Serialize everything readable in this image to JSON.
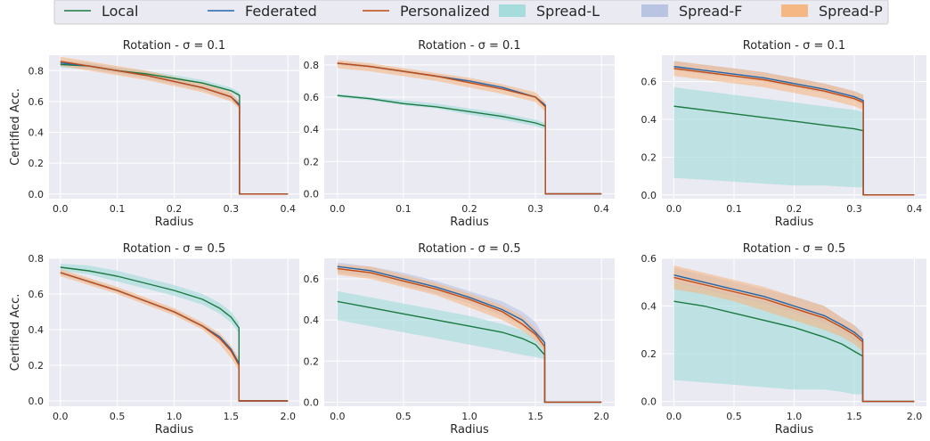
{
  "legend": {
    "entries": [
      {
        "label": "Local",
        "kind": "line",
        "color": "#1a7a3f"
      },
      {
        "label": "Federated",
        "kind": "line",
        "color": "#2166ac"
      },
      {
        "label": "Personalized",
        "kind": "line",
        "color": "#c04a15"
      },
      {
        "label": "Spread-L",
        "kind": "patch",
        "color": "#a6dcdc"
      },
      {
        "label": "Spread-F",
        "kind": "patch",
        "color": "#b9c4e2"
      },
      {
        "label": "Spread-P",
        "kind": "patch",
        "color": "#f5b783"
      }
    ]
  },
  "chart_data": [
    {
      "type": "line",
      "title": "Rotation - σ = 0.1",
      "xlabel": "Radius",
      "ylabel": "Certified Acc.",
      "xlim": [
        -0.02,
        0.42
      ],
      "ylim": [
        -0.03,
        0.9
      ],
      "xticks": [
        0.0,
        0.1,
        0.2,
        0.3,
        0.4
      ],
      "yticks": [
        0.0,
        0.2,
        0.4,
        0.6,
        0.8
      ],
      "x": [
        0.0,
        0.05,
        0.1,
        0.15,
        0.2,
        0.25,
        0.3,
        0.315,
        0.4
      ],
      "series": [
        {
          "name": "Local",
          "values": [
            0.84,
            0.83,
            0.8,
            0.78,
            0.75,
            0.72,
            0.67,
            0.64,
            0.0
          ],
          "spread_lo": [
            0.82,
            0.81,
            0.79,
            0.77,
            0.74,
            0.71,
            0.66,
            0.62,
            0.0
          ],
          "spread_hi": [
            0.86,
            0.85,
            0.82,
            0.8,
            0.77,
            0.74,
            0.69,
            0.66,
            0.0
          ]
        },
        {
          "name": "Federated",
          "values": [
            0.85,
            0.83,
            0.8,
            0.77,
            0.73,
            0.69,
            0.63,
            0.58,
            0.0
          ],
          "spread_lo": [
            0.83,
            0.81,
            0.78,
            0.75,
            0.71,
            0.67,
            0.61,
            0.56,
            0.0
          ],
          "spread_hi": [
            0.87,
            0.85,
            0.82,
            0.79,
            0.75,
            0.71,
            0.65,
            0.6,
            0.0
          ]
        },
        {
          "name": "Personalized",
          "values": [
            0.86,
            0.83,
            0.8,
            0.77,
            0.73,
            0.69,
            0.63,
            0.57,
            0.0
          ],
          "spread_lo": [
            0.83,
            0.8,
            0.77,
            0.74,
            0.7,
            0.66,
            0.6,
            0.55,
            0.0
          ],
          "spread_hi": [
            0.89,
            0.86,
            0.83,
            0.8,
            0.76,
            0.72,
            0.66,
            0.6,
            0.0
          ]
        }
      ]
    },
    {
      "type": "line",
      "title": "Rotation - σ = 0.1",
      "xlabel": "Radius",
      "ylabel": "",
      "xlim": [
        -0.02,
        0.42
      ],
      "ylim": [
        -0.03,
        0.86
      ],
      "xticks": [
        0.0,
        0.1,
        0.2,
        0.3,
        0.4
      ],
      "yticks": [
        0.0,
        0.2,
        0.4,
        0.6,
        0.8
      ],
      "x": [
        0.0,
        0.05,
        0.1,
        0.15,
        0.2,
        0.25,
        0.3,
        0.315,
        0.4
      ],
      "series": [
        {
          "name": "Local",
          "values": [
            0.61,
            0.59,
            0.56,
            0.54,
            0.51,
            0.48,
            0.44,
            0.42,
            0.0
          ],
          "spread_lo": [
            0.6,
            0.58,
            0.55,
            0.53,
            0.49,
            0.46,
            0.42,
            0.4,
            0.0
          ],
          "spread_hi": [
            0.62,
            0.6,
            0.58,
            0.56,
            0.53,
            0.5,
            0.46,
            0.44,
            0.0
          ]
        },
        {
          "name": "Federated",
          "values": [
            0.81,
            0.79,
            0.76,
            0.73,
            0.7,
            0.66,
            0.6,
            0.55,
            0.0
          ],
          "spread_lo": [
            0.8,
            0.78,
            0.75,
            0.72,
            0.69,
            0.65,
            0.59,
            0.54,
            0.0
          ],
          "spread_hi": [
            0.82,
            0.8,
            0.77,
            0.74,
            0.71,
            0.67,
            0.61,
            0.56,
            0.0
          ]
        },
        {
          "name": "Personalized",
          "values": [
            0.81,
            0.79,
            0.76,
            0.73,
            0.69,
            0.65,
            0.6,
            0.54,
            0.0
          ],
          "spread_lo": [
            0.78,
            0.76,
            0.73,
            0.7,
            0.66,
            0.62,
            0.57,
            0.51,
            0.0
          ],
          "spread_hi": [
            0.83,
            0.81,
            0.78,
            0.75,
            0.72,
            0.68,
            0.63,
            0.57,
            0.0
          ]
        }
      ]
    },
    {
      "type": "line",
      "title": "Rotation - σ = 0.1",
      "xlabel": "Radius",
      "ylabel": "",
      "xlim": [
        -0.02,
        0.42
      ],
      "ylim": [
        -0.02,
        0.74
      ],
      "xticks": [
        0.0,
        0.1,
        0.2,
        0.3,
        0.4
      ],
      "yticks": [
        0.0,
        0.2,
        0.4,
        0.6
      ],
      "x": [
        0.0,
        0.05,
        0.1,
        0.15,
        0.2,
        0.25,
        0.3,
        0.315,
        0.4
      ],
      "series": [
        {
          "name": "Local",
          "values": [
            0.47,
            0.45,
            0.43,
            0.41,
            0.39,
            0.37,
            0.35,
            0.34,
            0.0
          ],
          "spread_lo": [
            0.09,
            0.08,
            0.07,
            0.06,
            0.05,
            0.05,
            0.04,
            0.04,
            0.0
          ],
          "spread_hi": [
            0.57,
            0.55,
            0.53,
            0.51,
            0.49,
            0.47,
            0.45,
            0.44,
            0.0
          ]
        },
        {
          "name": "Federated",
          "values": [
            0.68,
            0.66,
            0.64,
            0.62,
            0.59,
            0.56,
            0.52,
            0.5,
            0.0
          ],
          "spread_lo": [
            0.66,
            0.64,
            0.62,
            0.6,
            0.57,
            0.54,
            0.5,
            0.47,
            0.0
          ],
          "spread_hi": [
            0.71,
            0.69,
            0.67,
            0.65,
            0.62,
            0.59,
            0.55,
            0.53,
            0.0
          ]
        },
        {
          "name": "Personalized",
          "values": [
            0.67,
            0.65,
            0.63,
            0.61,
            0.58,
            0.55,
            0.51,
            0.49,
            0.0
          ],
          "spread_lo": [
            0.63,
            0.61,
            0.59,
            0.57,
            0.54,
            0.51,
            0.47,
            0.45,
            0.0
          ],
          "spread_hi": [
            0.71,
            0.69,
            0.67,
            0.65,
            0.62,
            0.59,
            0.55,
            0.53,
            0.0
          ]
        }
      ]
    },
    {
      "type": "line",
      "title": "Rotation - σ = 0.5",
      "xlabel": "Radius",
      "ylabel": "Certified Acc.",
      "xlim": [
        -0.1,
        2.1
      ],
      "ylim": [
        -0.03,
        0.8
      ],
      "xticks": [
        0.0,
        0.5,
        1.0,
        1.5,
        2.0
      ],
      "yticks": [
        0.0,
        0.2,
        0.4,
        0.6,
        0.8
      ],
      "x": [
        0.0,
        0.25,
        0.5,
        0.75,
        1.0,
        1.25,
        1.4,
        1.5,
        1.57,
        2.0
      ],
      "series": [
        {
          "name": "Local",
          "values": [
            0.75,
            0.73,
            0.7,
            0.66,
            0.62,
            0.57,
            0.52,
            0.47,
            0.41,
            0.0
          ],
          "spread_lo": [
            0.73,
            0.71,
            0.67,
            0.63,
            0.59,
            0.54,
            0.49,
            0.44,
            0.38,
            0.0
          ],
          "spread_hi": [
            0.77,
            0.76,
            0.73,
            0.69,
            0.65,
            0.6,
            0.55,
            0.5,
            0.44,
            0.0
          ]
        },
        {
          "name": "Federated",
          "values": [
            0.72,
            0.67,
            0.62,
            0.56,
            0.5,
            0.42,
            0.36,
            0.29,
            0.21,
            0.0
          ],
          "spread_lo": [
            0.71,
            0.66,
            0.61,
            0.55,
            0.49,
            0.41,
            0.35,
            0.28,
            0.2,
            0.0
          ],
          "spread_hi": [
            0.73,
            0.68,
            0.63,
            0.57,
            0.51,
            0.43,
            0.37,
            0.3,
            0.22,
            0.0
          ]
        },
        {
          "name": "Personalized",
          "values": [
            0.72,
            0.67,
            0.62,
            0.56,
            0.5,
            0.42,
            0.35,
            0.28,
            0.2,
            0.0
          ],
          "spread_lo": [
            0.7,
            0.65,
            0.6,
            0.54,
            0.48,
            0.4,
            0.32,
            0.24,
            0.17,
            0.0
          ],
          "spread_hi": [
            0.74,
            0.69,
            0.64,
            0.58,
            0.52,
            0.44,
            0.38,
            0.31,
            0.24,
            0.0
          ]
        }
      ]
    },
    {
      "type": "line",
      "title": "Rotation - σ = 0.5",
      "xlabel": "Radius",
      "ylabel": "",
      "xlim": [
        -0.1,
        2.1
      ],
      "ylim": [
        -0.02,
        0.7
      ],
      "xticks": [
        0.0,
        0.5,
        1.0,
        1.5,
        2.0
      ],
      "yticks": [
        0.0,
        0.2,
        0.4,
        0.6
      ],
      "x": [
        0.0,
        0.25,
        0.5,
        0.75,
        1.0,
        1.25,
        1.4,
        1.5,
        1.57,
        2.0
      ],
      "series": [
        {
          "name": "Local",
          "values": [
            0.49,
            0.46,
            0.43,
            0.4,
            0.37,
            0.34,
            0.31,
            0.28,
            0.23,
            0.0
          ],
          "spread_lo": [
            0.4,
            0.37,
            0.34,
            0.31,
            0.28,
            0.25,
            0.23,
            0.22,
            0.21,
            0.0
          ],
          "spread_hi": [
            0.54,
            0.51,
            0.48,
            0.45,
            0.42,
            0.38,
            0.35,
            0.31,
            0.26,
            0.0
          ]
        },
        {
          "name": "Federated",
          "values": [
            0.66,
            0.64,
            0.6,
            0.56,
            0.51,
            0.45,
            0.4,
            0.34,
            0.29,
            0.0
          ],
          "spread_lo": [
            0.63,
            0.61,
            0.57,
            0.53,
            0.48,
            0.42,
            0.37,
            0.31,
            0.26,
            0.0
          ],
          "spread_hi": [
            0.68,
            0.66,
            0.63,
            0.59,
            0.54,
            0.49,
            0.44,
            0.39,
            0.31,
            0.0
          ]
        },
        {
          "name": "Personalized",
          "values": [
            0.65,
            0.63,
            0.59,
            0.55,
            0.5,
            0.44,
            0.38,
            0.33,
            0.27,
            0.0
          ],
          "spread_lo": [
            0.62,
            0.6,
            0.56,
            0.52,
            0.46,
            0.4,
            0.35,
            0.3,
            0.25,
            0.0
          ],
          "spread_hi": [
            0.67,
            0.66,
            0.62,
            0.58,
            0.53,
            0.47,
            0.42,
            0.36,
            0.3,
            0.0
          ]
        }
      ]
    },
    {
      "type": "line",
      "title": "Rotation - σ = 0.5",
      "xlabel": "Radius",
      "ylabel": "",
      "xlim": [
        -0.1,
        2.1
      ],
      "ylim": [
        -0.02,
        0.6
      ],
      "xticks": [
        0.0,
        0.5,
        1.0,
        1.5,
        2.0
      ],
      "yticks": [
        0.0,
        0.2,
        0.4,
        0.6
      ],
      "x": [
        0.0,
        0.25,
        0.5,
        0.75,
        1.0,
        1.25,
        1.4,
        1.5,
        1.57,
        2.0
      ],
      "series": [
        {
          "name": "Local",
          "values": [
            0.42,
            0.4,
            0.37,
            0.34,
            0.31,
            0.27,
            0.24,
            0.21,
            0.19,
            0.0
          ],
          "spread_lo": [
            0.09,
            0.08,
            0.07,
            0.06,
            0.05,
            0.05,
            0.04,
            0.03,
            0.03,
            0.0
          ],
          "spread_hi": [
            0.5,
            0.48,
            0.45,
            0.42,
            0.39,
            0.35,
            0.31,
            0.28,
            0.25,
            0.0
          ]
        },
        {
          "name": "Federated",
          "values": [
            0.53,
            0.5,
            0.47,
            0.44,
            0.4,
            0.36,
            0.32,
            0.29,
            0.26,
            0.0
          ],
          "spread_lo": [
            0.5,
            0.47,
            0.44,
            0.41,
            0.37,
            0.33,
            0.29,
            0.26,
            0.23,
            0.0
          ],
          "spread_hi": [
            0.56,
            0.53,
            0.5,
            0.47,
            0.44,
            0.4,
            0.35,
            0.32,
            0.29,
            0.0
          ]
        },
        {
          "name": "Personalized",
          "values": [
            0.52,
            0.49,
            0.46,
            0.43,
            0.39,
            0.35,
            0.31,
            0.28,
            0.25,
            0.0
          ],
          "spread_lo": [
            0.47,
            0.45,
            0.42,
            0.38,
            0.34,
            0.3,
            0.27,
            0.24,
            0.21,
            0.0
          ],
          "spread_hi": [
            0.57,
            0.54,
            0.51,
            0.48,
            0.44,
            0.4,
            0.35,
            0.32,
            0.28,
            0.0
          ]
        }
      ]
    }
  ]
}
